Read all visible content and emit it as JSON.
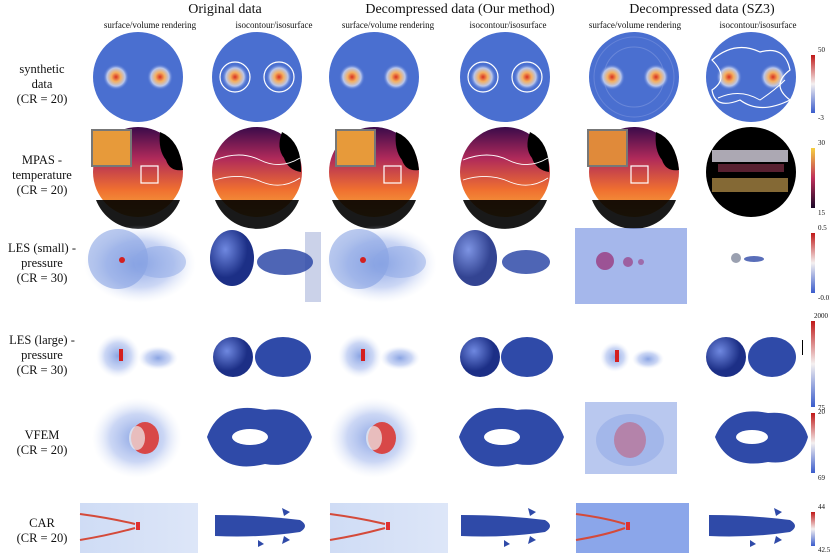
{
  "header": {
    "groups": [
      "Original data",
      "Decompressed data (Our method)",
      "Decompressed data (SZ3)"
    ],
    "subtitles": [
      "surface/volume rendering",
      "isocontour/isosurface"
    ]
  },
  "rows": [
    {
      "label": [
        "synthetic",
        "data",
        "(CR = 20)"
      ],
      "cb_max": "50",
      "cb_min": "-3"
    },
    {
      "label": [
        "MPAS -",
        "temperature",
        "(CR = 20)"
      ],
      "cb_max": "30",
      "cb_min": "15"
    },
    {
      "label": [
        "LES (small) -",
        "pressure",
        "(CR = 30)"
      ],
      "cb_max": "0.5",
      "cb_min": "-0.01"
    },
    {
      "label": [
        "LES (large) -",
        "pressure",
        "(CR = 30)"
      ],
      "cb_max": "2000",
      "cb_min": "20"
    },
    {
      "label": [
        "VFEM",
        "(CR = 20)"
      ],
      "cb_max": "75",
      "cb_min": "69"
    },
    {
      "label": [
        "CAR",
        "(CR = 20)"
      ],
      "cb_max": "44",
      "cb_min": "42.5"
    }
  ],
  "colors": {
    "vol_blue": "#4a6fd0",
    "iso_blue": "#2f4aa8",
    "hot": "#d93020",
    "light": "#dfe6f7"
  }
}
